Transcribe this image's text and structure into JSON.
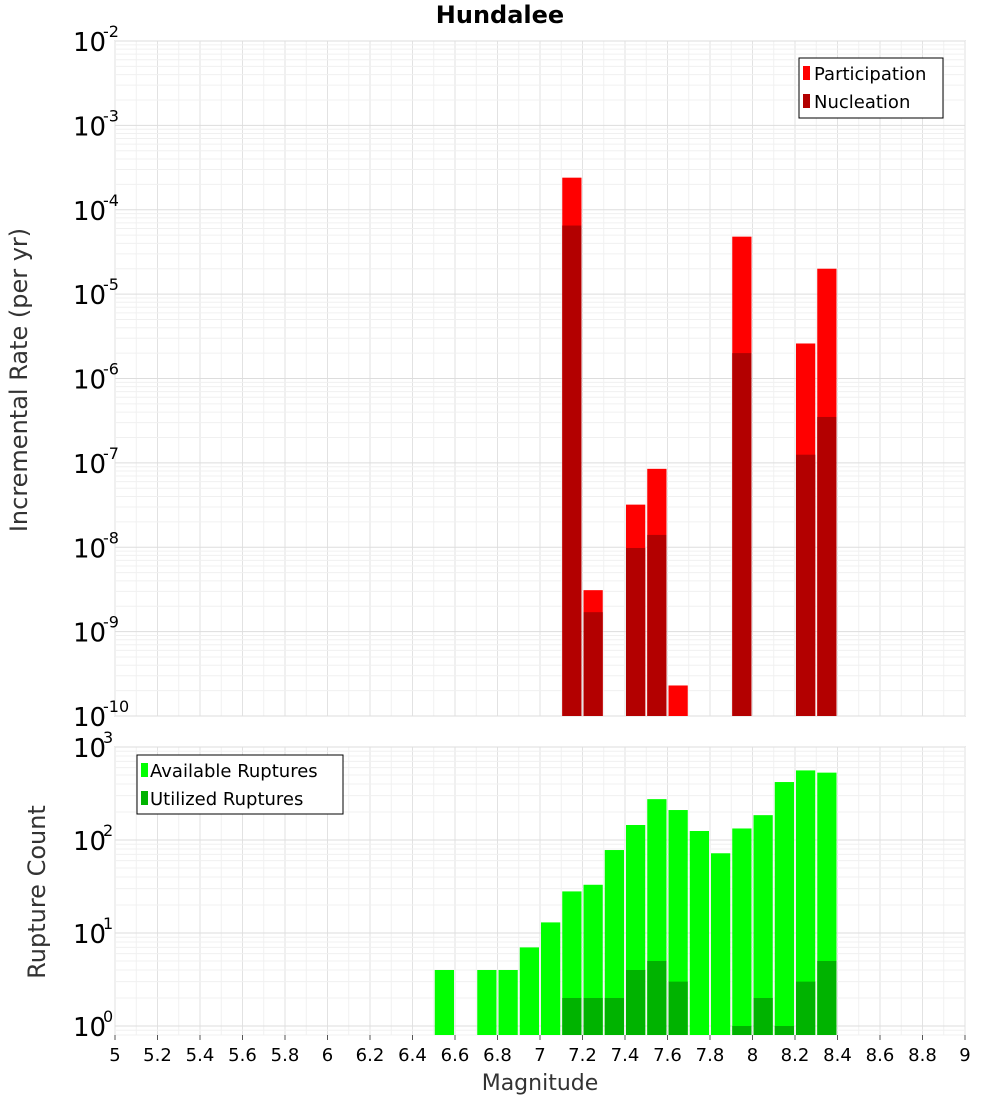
{
  "chart_data": [
    {
      "type": "bar",
      "title": "Hundalee",
      "ylabel": "Incremental Rate (per yr)",
      "xlabel": "",
      "yscale": "log",
      "ylim": [
        1e-10,
        0.01
      ],
      "xlim": [
        5,
        9
      ],
      "ytick_exponents": [
        "-10",
        "-9",
        "-8",
        "-7",
        "-6",
        "-5",
        "-4",
        "-3",
        "-2"
      ],
      "ytick_base": "10",
      "grid": true,
      "legend_position": "top-right",
      "x": [
        7.15,
        7.25,
        7.45,
        7.55,
        7.65,
        7.95,
        8.25,
        8.35
      ],
      "series": [
        {
          "name": "Participation",
          "color": "#ff0000",
          "values": [
            0.00024,
            3.1e-09,
            3.2e-08,
            8.5e-08,
            2.3e-10,
            4.8e-05,
            2.6e-06,
            2e-05
          ]
        },
        {
          "name": "Nucleation",
          "color": "#b30000",
          "values": [
            6.5e-05,
            1.7e-09,
            9.8e-09,
            1.4e-08,
            null,
            2e-06,
            1.25e-07,
            3.5e-07
          ]
        }
      ]
    },
    {
      "type": "bar",
      "title": "",
      "ylabel": "Rupture Count",
      "xlabel": "Magnitude",
      "yscale": "log",
      "ylim": [
        0.8,
        1000
      ],
      "xlim": [
        5,
        9
      ],
      "ytick_exponents": [
        "0",
        "1",
        "2",
        "3"
      ],
      "ytick_base": "10",
      "xticks": [
        "5",
        "5.2",
        "5.4",
        "5.6",
        "5.8",
        "6",
        "6.2",
        "6.4",
        "6.6",
        "6.8",
        "7",
        "7.2",
        "7.4",
        "7.6",
        "7.8",
        "8",
        "8.2",
        "8.4",
        "8.6",
        "8.8",
        "9"
      ],
      "grid": true,
      "legend_position": "top-left",
      "x": [
        6.55,
        6.75,
        6.85,
        6.95,
        7.05,
        7.15,
        7.25,
        7.35,
        7.45,
        7.55,
        7.65,
        7.75,
        7.85,
        7.95,
        8.05,
        8.15,
        8.25,
        8.35
      ],
      "series": [
        {
          "name": "Available Ruptures",
          "color": "#00ff00",
          "values": [
            4,
            4,
            4,
            7,
            13,
            28,
            33,
            78,
            145,
            275,
            210,
            125,
            72,
            133,
            185,
            420,
            560,
            530
          ]
        },
        {
          "name": "Utilized Ruptures",
          "color": "#00b300",
          "values": [
            null,
            null,
            null,
            null,
            null,
            2,
            2,
            2,
            4,
            5,
            3,
            null,
            null,
            1,
            2,
            1,
            3,
            5
          ]
        }
      ]
    }
  ]
}
